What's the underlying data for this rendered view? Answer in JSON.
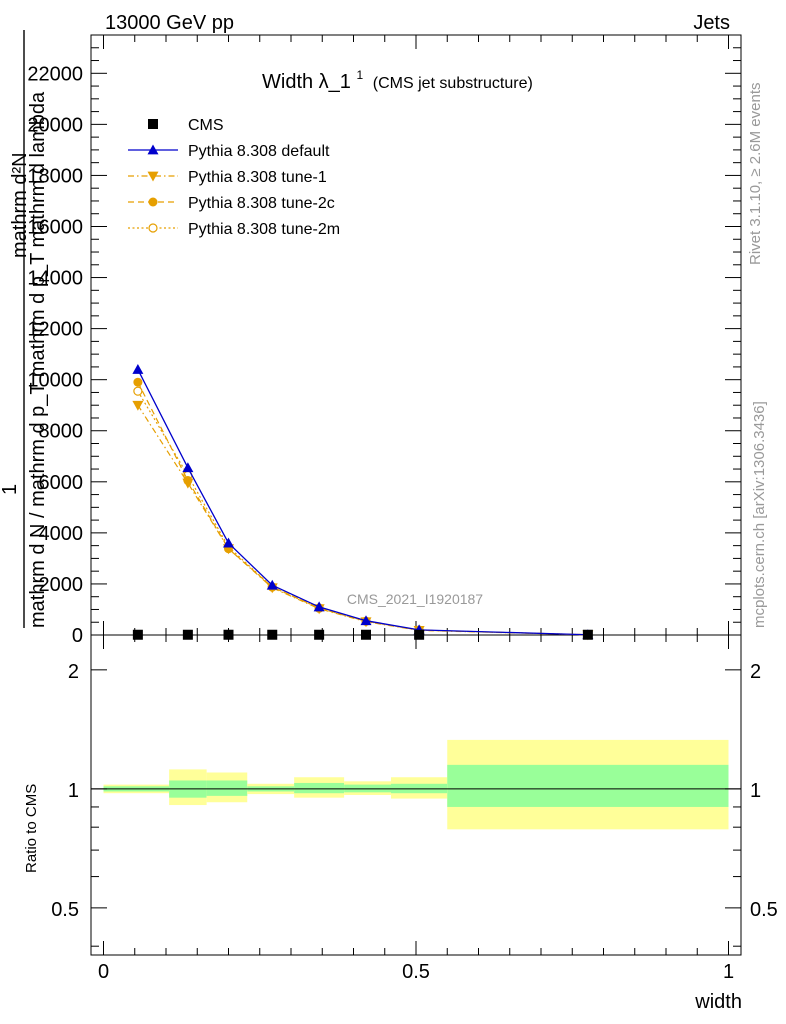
{
  "header": {
    "left": "13000 GeV pp",
    "right": "Jets"
  },
  "plot_title": {
    "main": "Width λ_1",
    "sup": "1",
    "sub": "(CMS jet substructure)"
  },
  "side_labels": {
    "rivet": "Rivet 3.1.10, ≥ 2.6M events",
    "mcplots": "mcplots.cern.ch [arXiv:1306.3436]"
  },
  "watermark": "CMS_2021_I1920187",
  "y_axis_label": {
    "numerator": "1",
    "denominator_lines": [
      "mathrm d N / mathrm d p",
      "T",
      "mathrm d N",
      "mathrm d p",
      "mathrm d lambda"
    ]
  },
  "ylabel_lines": {
    "top": "mathrm d²N",
    "line1": "mathrm d N / mathrm d p_T mathrm d p_T mathrm d lambda",
    "line2": "1"
  },
  "ratio_ylabel": "Ratio to CMS",
  "xlabel": "width",
  "colors": {
    "default": "#0000cc",
    "tunes": "#e69f00",
    "band_inner": "#99ff99",
    "band_outer": "#ffff99"
  },
  "chart_data": {
    "type": "line",
    "x_ticks": [
      "0",
      "0.5",
      "1"
    ],
    "y_ticks": [
      "0",
      "2000",
      "4000",
      "6000",
      "8000",
      "10000",
      "12000",
      "14000",
      "16000",
      "18000",
      "20000",
      "22000"
    ],
    "ratio_ticks": [
      "0.5",
      "1",
      "2"
    ],
    "xlim": [
      -0.02,
      1.02
    ],
    "ylim": [
      0,
      23500
    ],
    "ratio_ylim": [
      0.38,
      2.45
    ],
    "x": [
      0.055,
      0.135,
      0.2,
      0.27,
      0.345,
      0.42,
      0.505,
      0.775
    ],
    "series": [
      {
        "name": "CMS",
        "marker": "square",
        "values": [
          10,
          10,
          10,
          10,
          10,
          10,
          10,
          10
        ]
      },
      {
        "name": "Pythia 8.308 default",
        "marker": "triangle-up",
        "style": "solid",
        "values": [
          10400,
          6550,
          3600,
          1950,
          1100,
          560,
          200,
          10
        ]
      },
      {
        "name": "Pythia 8.308 tune-1",
        "marker": "triangle-down",
        "style": "dashdot",
        "values": [
          9000,
          5950,
          3380,
          1850,
          1030,
          520,
          180,
          10
        ]
      },
      {
        "name": "Pythia 8.308 tune-2c",
        "marker": "circle",
        "style": "dashed",
        "values": [
          9900,
          6050,
          3380,
          1880,
          1060,
          540,
          190,
          10
        ]
      },
      {
        "name": "Pythia 8.308 tune-2m",
        "marker": "circle-open",
        "style": "dotted",
        "values": [
          9550,
          6250,
          3450,
          1880,
          1050,
          540,
          190,
          10
        ]
      }
    ],
    "ratio_bands": [
      {
        "x0": 0.0,
        "x1": 0.105,
        "inner": [
          0.985,
          1.015
        ],
        "outer": [
          0.975,
          1.025
        ]
      },
      {
        "x0": 0.105,
        "x1": 0.165,
        "inner": [
          0.95,
          1.05
        ],
        "outer": [
          0.91,
          1.12
        ]
      },
      {
        "x0": 0.165,
        "x1": 0.23,
        "inner": [
          0.96,
          1.05
        ],
        "outer": [
          0.925,
          1.1
        ]
      },
      {
        "x0": 0.23,
        "x1": 0.305,
        "inner": [
          0.985,
          1.015
        ],
        "outer": [
          0.97,
          1.03
        ]
      },
      {
        "x0": 0.305,
        "x1": 0.385,
        "inner": [
          0.975,
          1.035
        ],
        "outer": [
          0.95,
          1.07
        ]
      },
      {
        "x0": 0.385,
        "x1": 0.46,
        "inner": [
          0.98,
          1.025
        ],
        "outer": [
          0.965,
          1.045
        ]
      },
      {
        "x0": 0.46,
        "x1": 0.55,
        "inner": [
          0.975,
          1.03
        ],
        "outer": [
          0.945,
          1.07
        ]
      },
      {
        "x0": 0.55,
        "x1": 1.0,
        "inner": [
          0.9,
          1.15
        ],
        "outer": [
          0.79,
          1.33
        ]
      }
    ],
    "legend_position": "top-left",
    "grid": false
  }
}
